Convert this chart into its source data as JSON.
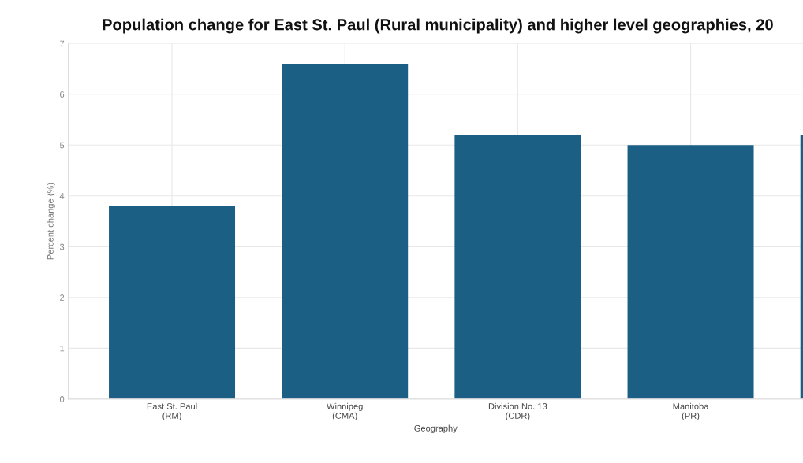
{
  "chart_data": {
    "type": "bar",
    "title": "Population change for East St. Paul (Rural municipality) and higher level geographies, 20",
    "categories": [
      "East St. Paul\n(RM)",
      "Winnipeg\n(CMA)",
      "Division No. 13\n(CDR)",
      "Manitoba\n(PR)",
      null
    ],
    "values": [
      3.8,
      6.6,
      5.2,
      5.0,
      5.2
    ],
    "color": "#1b5f85",
    "xlabel": "Geography",
    "ylabel": "Percent change (%)",
    "ylim": [
      0,
      7
    ],
    "yticks": [
      0,
      1,
      2,
      3,
      4,
      5,
      6,
      7
    ],
    "grid": true
  }
}
